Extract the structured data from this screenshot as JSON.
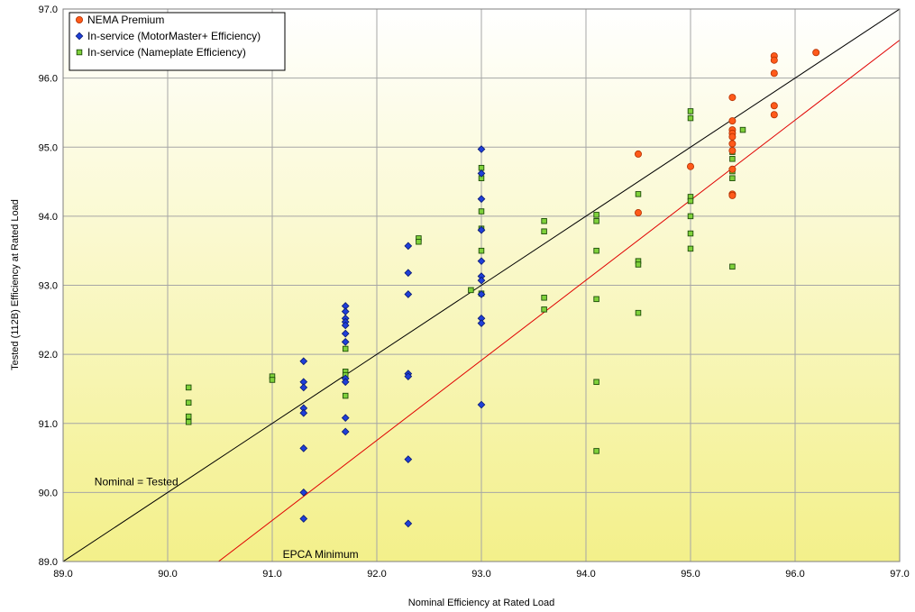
{
  "chart_data": {
    "type": "scatter",
    "xlabel": "Nominal Efficiency at Rated Load",
    "ylabel": "Tested (112B) Efficiency at Rated Load",
    "xlim": [
      89.0,
      97.0
    ],
    "ylim": [
      89.0,
      97.0
    ],
    "xticks": [
      "89.0",
      "90.0",
      "91.0",
      "92.0",
      "93.0",
      "94.0",
      "95.0",
      "96.0",
      "97.0"
    ],
    "yticks": [
      "89.0",
      "90.0",
      "91.0",
      "92.0",
      "93.0",
      "94.0",
      "95.0",
      "96.0",
      "97.0"
    ],
    "grid": true,
    "legend_position": "top-left",
    "background": "gradient white to light yellow",
    "colors": {
      "nema": "#ff5a1a",
      "nema_edge": "#b33000",
      "mm": "#1f3fd8",
      "mm_edge": "#0a1a70",
      "np": "#7fd13b",
      "np_edge": "#1e4d0a",
      "grid": "#a6a6a6",
      "equal_line": "#000000",
      "epca_line": "#e00000"
    },
    "series": [
      {
        "name": "NEMA Premium",
        "marker": "circle",
        "points": [
          [
            94.5,
            94.9
          ],
          [
            94.5,
            94.05
          ],
          [
            95.0,
            94.72
          ],
          [
            95.4,
            95.72
          ],
          [
            95.4,
            95.38
          ],
          [
            95.4,
            95.25
          ],
          [
            95.4,
            95.2
          ],
          [
            95.4,
            95.15
          ],
          [
            95.4,
            95.05
          ],
          [
            95.4,
            94.95
          ],
          [
            95.4,
            94.68
          ],
          [
            95.4,
            94.32
          ],
          [
            95.4,
            94.3
          ],
          [
            95.8,
            96.32
          ],
          [
            95.8,
            96.26
          ],
          [
            95.8,
            96.07
          ],
          [
            95.8,
            95.6
          ],
          [
            95.8,
            95.47
          ],
          [
            96.2,
            96.37
          ]
        ]
      },
      {
        "name": "In-service (MotorMaster+ Efficiency)",
        "marker": "diamond",
        "points": [
          [
            91.3,
            91.9
          ],
          [
            91.3,
            91.6
          ],
          [
            91.3,
            91.52
          ],
          [
            91.3,
            91.22
          ],
          [
            91.3,
            91.15
          ],
          [
            91.3,
            90.64
          ],
          [
            91.3,
            90.0
          ],
          [
            91.3,
            89.62
          ],
          [
            91.7,
            92.7
          ],
          [
            91.7,
            92.62
          ],
          [
            91.7,
            92.52
          ],
          [
            91.7,
            92.47
          ],
          [
            91.7,
            92.42
          ],
          [
            91.7,
            92.3
          ],
          [
            91.7,
            92.18
          ],
          [
            91.7,
            91.65
          ],
          [
            91.7,
            91.6
          ],
          [
            91.7,
            91.08
          ],
          [
            91.7,
            90.88
          ],
          [
            92.3,
            93.57
          ],
          [
            92.3,
            93.18
          ],
          [
            92.3,
            92.87
          ],
          [
            92.3,
            91.72
          ],
          [
            92.3,
            91.68
          ],
          [
            92.3,
            90.48
          ],
          [
            92.3,
            89.55
          ],
          [
            93.0,
            94.97
          ],
          [
            93.0,
            94.62
          ],
          [
            93.0,
            94.25
          ],
          [
            93.0,
            93.8
          ],
          [
            93.0,
            93.35
          ],
          [
            93.0,
            93.13
          ],
          [
            93.0,
            93.07
          ],
          [
            93.0,
            92.87
          ],
          [
            93.0,
            92.52
          ],
          [
            93.0,
            92.45
          ],
          [
            93.0,
            91.27
          ]
        ]
      },
      {
        "name": "In-service (Nameplate Efficiency)",
        "marker": "square",
        "points": [
          [
            90.2,
            91.52
          ],
          [
            90.2,
            91.3
          ],
          [
            90.2,
            91.1
          ],
          [
            90.2,
            91.02
          ],
          [
            91.0,
            91.68
          ],
          [
            91.0,
            91.63
          ],
          [
            91.7,
            91.75
          ],
          [
            91.7,
            91.7
          ],
          [
            91.7,
            91.4
          ],
          [
            91.7,
            92.08
          ],
          [
            92.4,
            93.68
          ],
          [
            92.4,
            93.63
          ],
          [
            92.9,
            92.93
          ],
          [
            93.0,
            94.7
          ],
          [
            93.0,
            94.55
          ],
          [
            93.0,
            94.07
          ],
          [
            93.0,
            93.82
          ],
          [
            93.0,
            93.5
          ],
          [
            93.0,
            92.88
          ],
          [
            93.6,
            93.93
          ],
          [
            93.6,
            93.78
          ],
          [
            93.6,
            92.82
          ],
          [
            93.6,
            92.65
          ],
          [
            94.1,
            94.02
          ],
          [
            94.1,
            93.93
          ],
          [
            94.1,
            93.5
          ],
          [
            94.1,
            92.8
          ],
          [
            94.1,
            91.6
          ],
          [
            94.1,
            90.6
          ],
          [
            94.5,
            94.32
          ],
          [
            94.5,
            93.35
          ],
          [
            94.5,
            93.3
          ],
          [
            94.5,
            92.6
          ],
          [
            95.0,
            95.52
          ],
          [
            95.0,
            95.42
          ],
          [
            95.0,
            94.28
          ],
          [
            95.0,
            94.22
          ],
          [
            95.0,
            94.0
          ],
          [
            95.0,
            93.75
          ],
          [
            95.0,
            93.53
          ],
          [
            95.4,
            94.93
          ],
          [
            95.4,
            94.83
          ],
          [
            95.4,
            94.65
          ],
          [
            95.4,
            94.55
          ],
          [
            95.4,
            93.27
          ],
          [
            95.5,
            95.25
          ]
        ]
      }
    ],
    "lines": [
      {
        "name": "Nominal = Tested",
        "from": [
          89.0,
          89.0
        ],
        "to": [
          97.0,
          97.0
        ],
        "color": "equal_line"
      },
      {
        "name": "EPCA Minimum",
        "from": [
          90.4,
          88.9
        ],
        "to": [
          97.0,
          96.55
        ],
        "color": "epca_line"
      }
    ],
    "annotations": [
      {
        "text": "Nominal = Tested",
        "x": 89.3,
        "y": 90.1
      },
      {
        "text": "EPCA Minimum",
        "x": 91.1,
        "y": 89.05
      }
    ]
  }
}
